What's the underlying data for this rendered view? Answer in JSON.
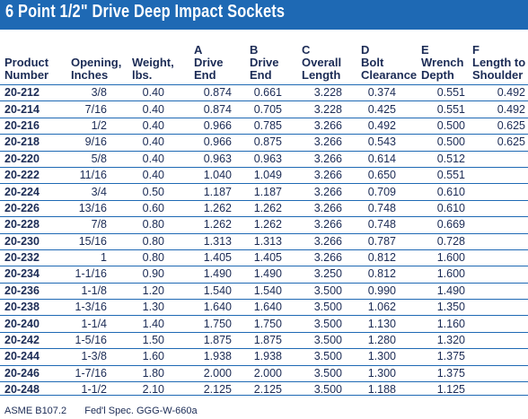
{
  "title": "6 Point 1/2\" Drive Deep Impact Sockets",
  "headers": [
    [
      "",
      "Product",
      "Number"
    ],
    [
      "",
      "Opening,",
      "Inches"
    ],
    [
      "",
      "Weight,",
      "lbs."
    ],
    [
      "A",
      "Drive",
      "End"
    ],
    [
      "B",
      "Drive",
      "End"
    ],
    [
      "C",
      "Overall",
      "Length"
    ],
    [
      "D",
      "Bolt",
      "Clearance"
    ],
    [
      "E",
      "Wrench",
      "Depth"
    ],
    [
      "F",
      "Length to",
      "Shoulder"
    ]
  ],
  "rows": [
    [
      "20-212",
      "3/8",
      "0.40",
      "0.874",
      "0.661",
      "3.228",
      "0.374",
      "0.551",
      "0.492"
    ],
    [
      "20-214",
      "7/16",
      "0.40",
      "0.874",
      "0.705",
      "3.228",
      "0.425",
      "0.551",
      "0.492"
    ],
    [
      "20-216",
      "1/2",
      "0.40",
      "0.966",
      "0.785",
      "3.266",
      "0.492",
      "0.500",
      "0.625"
    ],
    [
      "20-218",
      "9/16",
      "0.40",
      "0.966",
      "0.875",
      "3.266",
      "0.543",
      "0.500",
      "0.625"
    ],
    [
      "20-220",
      "5/8",
      "0.40",
      "0.963",
      "0.963",
      "3.266",
      "0.614",
      "0.512",
      ""
    ],
    [
      "20-222",
      "11/16",
      "0.40",
      "1.040",
      "1.049",
      "3.266",
      "0.650",
      "0.551",
      ""
    ],
    [
      "20-224",
      "3/4",
      "0.50",
      "1.187",
      "1.187",
      "3.266",
      "0.709",
      "0.610",
      ""
    ],
    [
      "20-226",
      "13/16",
      "0.60",
      "1.262",
      "1.262",
      "3.266",
      "0.748",
      "0.610",
      ""
    ],
    [
      "20-228",
      "7/8",
      "0.80",
      "1.262",
      "1.262",
      "3.266",
      "0.748",
      "0.669",
      ""
    ],
    [
      "20-230",
      "15/16",
      "0.80",
      "1.313",
      "1.313",
      "3.266",
      "0.787",
      "0.728",
      ""
    ],
    [
      "20-232",
      "1",
      "0.80",
      "1.405",
      "1.405",
      "3.266",
      "0.812",
      "1.600",
      ""
    ],
    [
      "20-234",
      "1-1/16",
      "0.90",
      "1.490",
      "1.490",
      "3.250",
      "0.812",
      "1.600",
      ""
    ],
    [
      "20-236",
      "1-1/8",
      "1.20",
      "1.540",
      "1.540",
      "3.500",
      "0.990",
      "1.490",
      ""
    ],
    [
      "20-238",
      "1-3/16",
      "1.30",
      "1.640",
      "1.640",
      "3.500",
      "1.062",
      "1.350",
      ""
    ],
    [
      "20-240",
      "1-1/4",
      "1.40",
      "1.750",
      "1.750",
      "3.500",
      "1.130",
      "1.160",
      ""
    ],
    [
      "20-242",
      "1-5/16",
      "1.50",
      "1.875",
      "1.875",
      "3.500",
      "1.280",
      "1.320",
      ""
    ],
    [
      "20-244",
      "1-3/8",
      "1.60",
      "1.938",
      "1.938",
      "3.500",
      "1.300",
      "1.375",
      ""
    ],
    [
      "20-246",
      "1-7/16",
      "1.80",
      "2.000",
      "2.000",
      "3.500",
      "1.300",
      "1.375",
      ""
    ],
    [
      "20-248",
      "1-1/2",
      "2.10",
      "2.125",
      "2.125",
      "3.500",
      "1.188",
      "1.125",
      ""
    ]
  ],
  "footer": {
    "standard": "ASME B107.2",
    "spec": "Fed'l Spec. GGG-W-660a"
  },
  "colors": {
    "accent": "#1e69b4",
    "text": "#1b2b55"
  }
}
